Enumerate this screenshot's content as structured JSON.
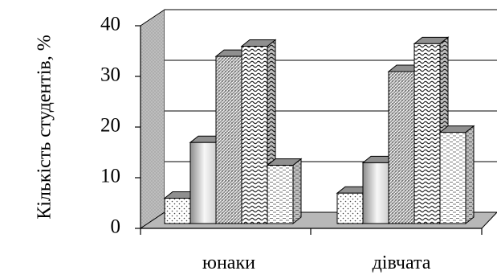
{
  "chart_data": {
    "type": "bar",
    "title": "",
    "xlabel": "",
    "ylabel": "Кількість студентів, %",
    "ylim": [
      0,
      40
    ],
    "yticks": [
      0,
      10,
      20,
      30,
      40
    ],
    "grid": true,
    "legend": "none",
    "three_d": true,
    "categories": [
      "юнаки",
      "дівчата"
    ],
    "series": [
      {
        "values": [
          5,
          6
        ]
      },
      {
        "values": [
          16,
          12
        ]
      },
      {
        "values": [
          33,
          30
        ]
      },
      {
        "values": [
          35,
          35.5
        ]
      },
      {
        "values": [
          11.5,
          18
        ]
      }
    ]
  }
}
